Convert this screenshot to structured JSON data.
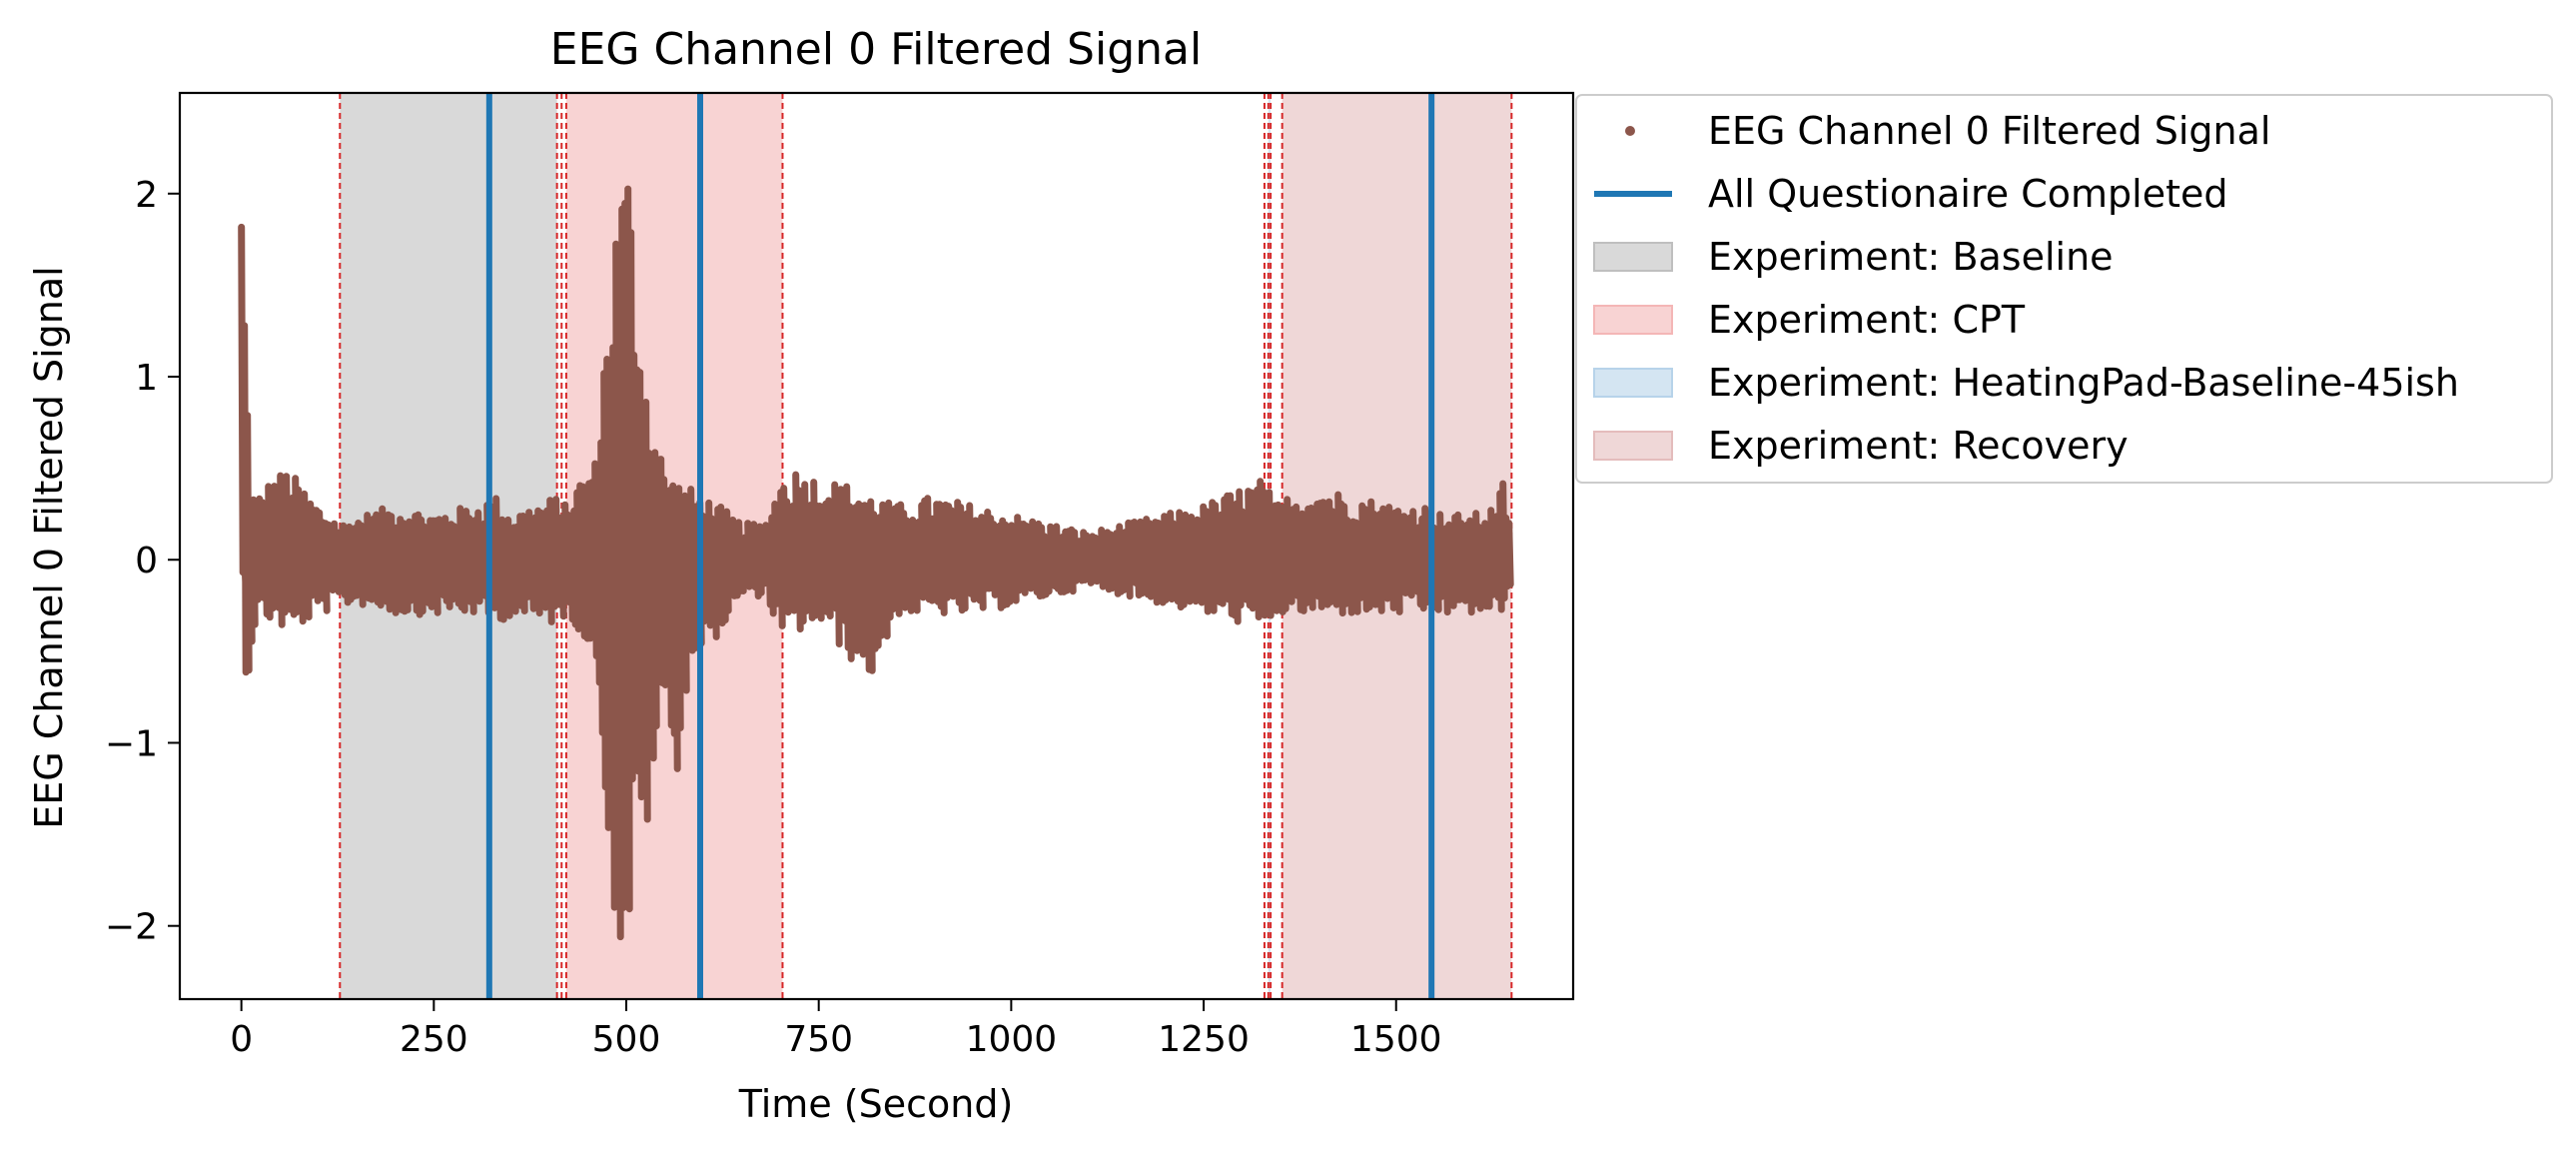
{
  "chart_data": {
    "type": "line",
    "title": "EEG Channel 0 Filtered Signal",
    "xlabel": "Time (Second)",
    "ylabel": "EEG Channel 0 Filtered Signal",
    "xlim": [
      -80,
      1730
    ],
    "ylim": [
      -2.4,
      2.55
    ],
    "xticks": [
      0,
      250,
      500,
      750,
      1000,
      1250,
      1500
    ],
    "xtick_labels": [
      "0",
      "250",
      "500",
      "750",
      "1000",
      "1250",
      "1500"
    ],
    "yticks": [
      -2,
      -1,
      0,
      1,
      2
    ],
    "ytick_labels": [
      "−2",
      "−1",
      "0",
      "1",
      "2"
    ],
    "grid": false,
    "legend_position": "outside-right",
    "series": [
      {
        "name": "EEG Channel 0 Filtered Signal",
        "marker": "dot",
        "color": "#8c564b",
        "x_range": [
          0,
          1650
        ],
        "envelope": {
          "x": [
            0,
            2,
            5,
            8,
            12,
            20,
            40,
            60,
            100,
            130,
            160,
            200,
            250,
            300,
            330,
            350,
            380,
            410,
            420,
            440,
            460,
            470,
            480,
            490,
            500,
            510,
            520,
            530,
            540,
            550,
            560,
            580,
            600,
            620,
            650,
            680,
            700,
            720,
            750,
            800,
            820,
            850,
            900,
            950,
            1000,
            1050,
            1100,
            1150,
            1200,
            1250,
            1300,
            1330,
            1340,
            1360,
            1400,
            1450,
            1500,
            1540,
            1560,
            1600,
            1630,
            1640,
            1650
          ],
          "upper": [
            2.15,
            2.1,
            1.2,
            0.9,
            0.4,
            0.35,
            0.45,
            0.5,
            0.3,
            0.2,
            0.25,
            0.3,
            0.25,
            0.3,
            0.35,
            0.25,
            0.3,
            0.35,
            0.3,
            0.45,
            0.55,
            1.1,
            1.7,
            2.0,
            2.3,
            1.8,
            1.2,
            0.9,
            0.7,
            0.5,
            0.45,
            0.4,
            0.35,
            0.3,
            0.2,
            0.2,
            0.45,
            0.5,
            0.45,
            0.4,
            0.35,
            0.3,
            0.35,
            0.3,
            0.25,
            0.2,
            0.15,
            0.2,
            0.25,
            0.3,
            0.4,
            0.45,
            0.3,
            0.35,
            0.4,
            0.35,
            0.3,
            0.3,
            0.25,
            0.25,
            0.3,
            0.45,
            0.1
          ],
          "lower": [
            -0.1,
            -0.3,
            -0.8,
            -0.7,
            -0.45,
            -0.3,
            -0.35,
            -0.4,
            -0.3,
            -0.25,
            -0.25,
            -0.3,
            -0.3,
            -0.3,
            -0.35,
            -0.3,
            -0.35,
            -0.35,
            -0.3,
            -0.4,
            -0.6,
            -1.2,
            -1.9,
            -2.2,
            -2.2,
            -1.6,
            -1.7,
            -1.3,
            -1.0,
            -0.8,
            -1.3,
            -0.6,
            -0.5,
            -0.4,
            -0.2,
            -0.2,
            -0.45,
            -0.4,
            -0.35,
            -0.6,
            -0.65,
            -0.3,
            -0.3,
            -0.3,
            -0.25,
            -0.2,
            -0.15,
            -0.2,
            -0.25,
            -0.3,
            -0.35,
            -0.4,
            -0.3,
            -0.3,
            -0.3,
            -0.3,
            -0.3,
            -0.3,
            -0.3,
            -0.3,
            -0.3,
            -0.3,
            -0.05
          ]
        }
      }
    ],
    "vertical_lines": {
      "name": "All Questionaire Completed",
      "color": "#1f77b4",
      "x": [
        322,
        596,
        1546
      ]
    },
    "shaded_regions": [
      {
        "name": "Experiment: Baseline",
        "color": "#bfbfbf",
        "start": 128,
        "end": 410
      },
      {
        "name": "Experiment: CPT",
        "color": "#f4b6b6",
        "start": 422,
        "end": 703
      },
      {
        "name": "Experiment: HeatingPad-Baseline-45ish",
        "color": "#b7d3ea",
        "start": 1334,
        "end": 1337
      },
      {
        "name": "Experiment: Recovery",
        "color": "#e4bcbc",
        "start": 1352,
        "end": 1650
      }
    ],
    "boundary_lines": {
      "color": "#d62728",
      "style": "dashed",
      "x": [
        128,
        410,
        416,
        422,
        703,
        1329,
        1334,
        1337,
        1352,
        1650
      ]
    },
    "legend": [
      {
        "label": "EEG Channel 0 Filtered Signal",
        "kind": "dot",
        "color": "#8c564b"
      },
      {
        "label": "All Questionaire Completed",
        "kind": "line",
        "color": "#1f77b4"
      },
      {
        "label": "Experiment: Baseline",
        "kind": "patch",
        "color": "#bfbfbf"
      },
      {
        "label": "Experiment: CPT",
        "kind": "patch",
        "color": "#f4b6b6"
      },
      {
        "label": "Experiment: HeatingPad-Baseline-45ish",
        "kind": "patch",
        "color": "#b7d3ea"
      },
      {
        "label": "Experiment: Recovery",
        "kind": "patch",
        "color": "#e4bcbc"
      }
    ]
  }
}
